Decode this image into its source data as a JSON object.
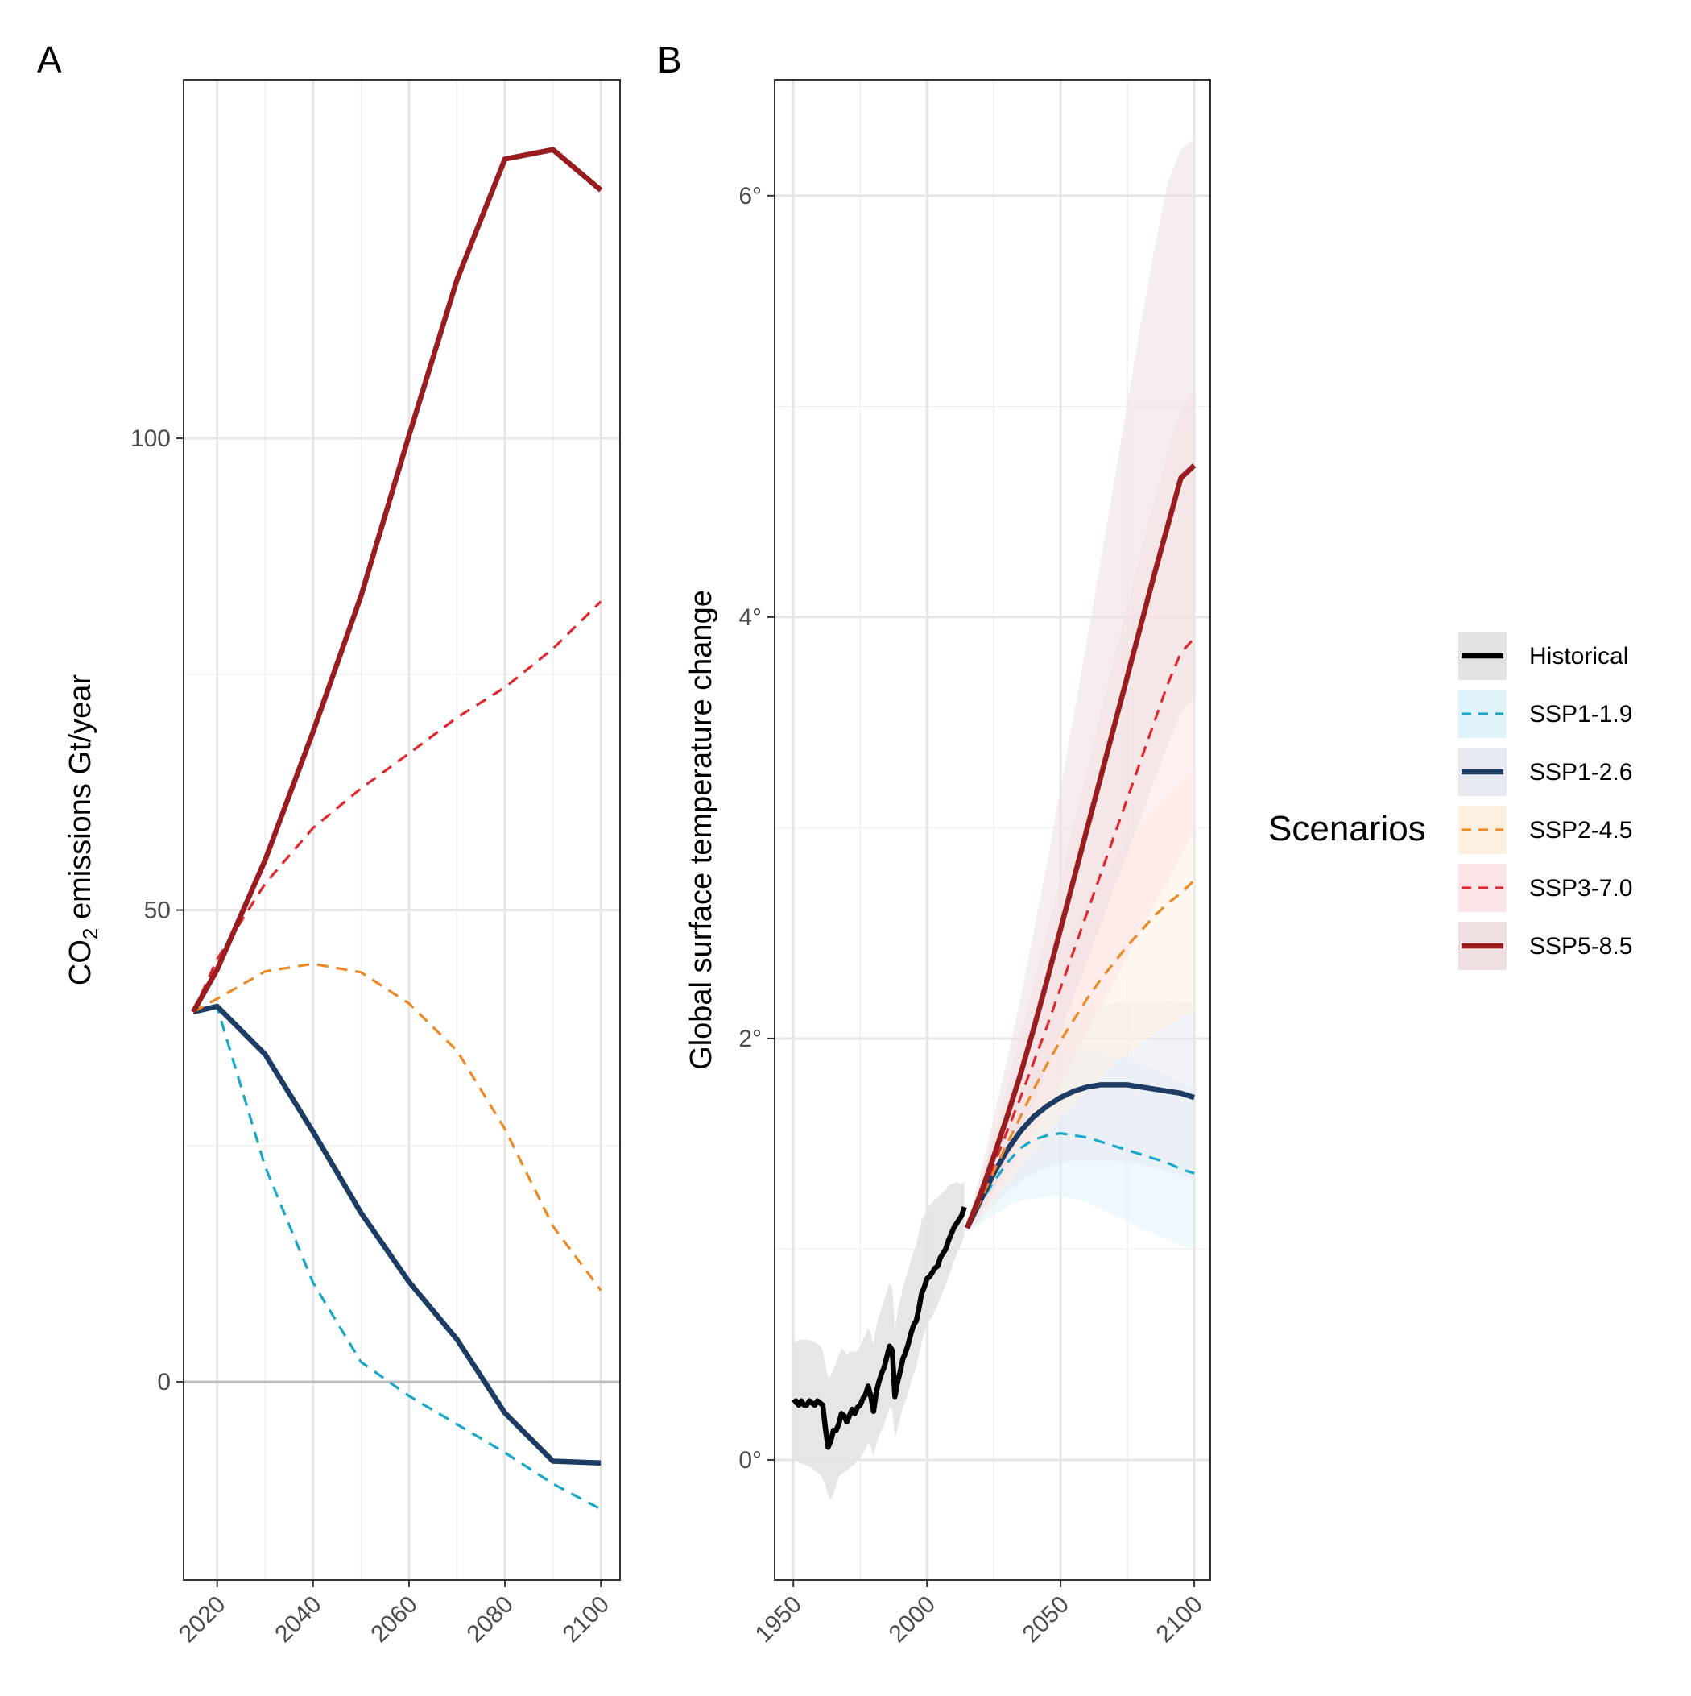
{
  "chart_data": [
    {
      "panel": "A",
      "type": "line",
      "xlabel": "",
      "ylabel_main": "CO",
      "ylabel_sub": "2",
      "ylabel_rest": " emissions Gt/year",
      "xlim": [
        2013,
        2104
      ],
      "ylim": [
        -21,
        138
      ],
      "xticks": [
        "2020",
        "2040",
        "2060",
        "2080",
        "2100"
      ],
      "yticks": [
        "0",
        "50",
        "100"
      ],
      "hline_zero": true,
      "grid": true,
      "series": [
        {
          "name": "SSP1-1.9",
          "color": "#1aa7c8",
          "dash": true,
          "x": [
            2015,
            2020,
            2030,
            2040,
            2050,
            2060,
            2070,
            2080,
            2090,
            2100
          ],
          "y": [
            39.2,
            39.7,
            22.8,
            10.5,
            2.1,
            -1.5,
            -4.5,
            -7.5,
            -10.8,
            -13.5
          ]
        },
        {
          "name": "SSP1-2.6",
          "color": "#1d3b63",
          "dash": false,
          "x": [
            2015,
            2020,
            2030,
            2040,
            2050,
            2060,
            2070,
            2080,
            2090,
            2100
          ],
          "y": [
            39.2,
            39.8,
            34.7,
            26.5,
            17.9,
            10.6,
            4.5,
            -3.3,
            -8.4,
            -8.6
          ]
        },
        {
          "name": "SSP2-4.5",
          "color": "#ee8a26",
          "dash": true,
          "x": [
            2015,
            2020,
            2030,
            2040,
            2050,
            2060,
            2070,
            2080,
            2090,
            2100
          ],
          "y": [
            39.2,
            40.6,
            43.5,
            44.3,
            43.4,
            40.1,
            35.1,
            26.8,
            16.5,
            9.7
          ]
        },
        {
          "name": "SSP3-7.0",
          "color": "#de2a2f",
          "dash": true,
          "x": [
            2015,
            2020,
            2030,
            2040,
            2050,
            2060,
            2070,
            2080,
            2090,
            2100
          ],
          "y": [
            39.2,
            44.8,
            52.8,
            58.7,
            62.9,
            66.6,
            70.4,
            73.6,
            77.7,
            82.7
          ]
        },
        {
          "name": "SSP5-8.5",
          "color": "#991c21",
          "dash": false,
          "x": [
            2015,
            2020,
            2030,
            2040,
            2050,
            2060,
            2070,
            2080,
            2090,
            2100
          ],
          "y": [
            39.2,
            43.7,
            55.3,
            68.9,
            83.3,
            100.3,
            116.8,
            129.6,
            130.6,
            126.3
          ]
        }
      ]
    },
    {
      "panel": "B",
      "type": "line",
      "xlabel": "",
      "ylabel": "Global surface temperature change",
      "xlim": [
        1943,
        2106
      ],
      "ylim": [
        -0.57,
        6.55
      ],
      "xticks": [
        "1950",
        "2000",
        "2050",
        "2100"
      ],
      "yticks": [
        "0°",
        "2°",
        "4°",
        "6°"
      ],
      "grid": true,
      "series": [
        {
          "name": "Historical",
          "color": "#000000",
          "dash": false,
          "x": [
            1950,
            1951,
            1952,
            1953,
            1954,
            1955,
            1956,
            1957,
            1958,
            1959,
            1960,
            1961,
            1962,
            1963,
            1964,
            1965,
            1966,
            1967,
            1968,
            1969,
            1970,
            1971,
            1972,
            1973,
            1974,
            1975,
            1976,
            1977,
            1978,
            1979,
            1980,
            1981,
            1982,
            1983,
            1984,
            1985,
            1986,
            1987,
            1988,
            1989,
            1990,
            1991,
            1992,
            1993,
            1994,
            1995,
            1996,
            1997,
            1998,
            1999,
            2000,
            2001,
            2002,
            2003,
            2004,
            2005,
            2006,
            2007,
            2008,
            2009,
            2010,
            2011,
            2012,
            2013,
            2014
          ],
          "y": [
            0.27,
            0.28,
            0.26,
            0.28,
            0.26,
            0.26,
            0.28,
            0.27,
            0.26,
            0.28,
            0.27,
            0.26,
            0.15,
            0.06,
            0.09,
            0.14,
            0.14,
            0.17,
            0.22,
            0.21,
            0.18,
            0.21,
            0.24,
            0.22,
            0.25,
            0.26,
            0.29,
            0.31,
            0.35,
            0.3,
            0.23,
            0.32,
            0.37,
            0.41,
            0.44,
            0.49,
            0.54,
            0.52,
            0.3,
            0.37,
            0.42,
            0.48,
            0.51,
            0.55,
            0.6,
            0.64,
            0.66,
            0.72,
            0.79,
            0.82,
            0.86,
            0.87,
            0.89,
            0.91,
            0.92,
            0.96,
            0.98,
            1.0,
            1.04,
            1.07,
            1.1,
            1.12,
            1.14,
            1.16,
            1.2
          ],
          "band_lo": [
            0.0,
            0.0,
            -0.01,
            -0.02,
            -0.02,
            -0.03,
            -0.03,
            -0.04,
            -0.05,
            -0.06,
            -0.07,
            -0.09,
            -0.12,
            -0.17,
            -0.19,
            -0.16,
            -0.12,
            -0.08,
            -0.07,
            -0.06,
            -0.05,
            -0.04,
            -0.03,
            -0.02,
            0.0,
            0.01,
            0.03,
            0.05,
            0.08,
            0.06,
            0.02,
            0.07,
            0.11,
            0.14,
            0.17,
            0.21,
            0.25,
            0.24,
            0.1,
            0.15,
            0.2,
            0.25,
            0.28,
            0.32,
            0.37,
            0.41,
            0.44,
            0.5,
            0.56,
            0.6,
            0.64,
            0.66,
            0.68,
            0.71,
            0.73,
            0.77,
            0.8,
            0.83,
            0.87,
            0.9,
            0.94,
            0.97,
            1.0,
            1.03,
            1.07
          ],
          "band_hi": [
            0.56,
            0.56,
            0.57,
            0.57,
            0.57,
            0.57,
            0.57,
            0.56,
            0.56,
            0.55,
            0.54,
            0.52,
            0.45,
            0.39,
            0.4,
            0.43,
            0.46,
            0.5,
            0.53,
            0.52,
            0.5,
            0.51,
            0.52,
            0.51,
            0.52,
            0.54,
            0.57,
            0.59,
            0.63,
            0.6,
            0.55,
            0.63,
            0.68,
            0.72,
            0.76,
            0.8,
            0.84,
            0.82,
            0.62,
            0.7,
            0.76,
            0.82,
            0.86,
            0.9,
            0.95,
            0.99,
            1.02,
            1.08,
            1.14,
            1.16,
            1.2,
            1.21,
            1.22,
            1.24,
            1.24,
            1.26,
            1.27,
            1.28,
            1.3,
            1.31,
            1.31,
            1.32,
            1.31,
            1.31,
            1.32
          ]
        },
        {
          "name": "SSP1-1.9",
          "color": "#1aa7c8",
          "dash": true,
          "x": [
            2015,
            2020,
            2025,
            2030,
            2035,
            2040,
            2045,
            2050,
            2055,
            2060,
            2065,
            2070,
            2075,
            2080,
            2085,
            2090,
            2095,
            2100
          ],
          "y": [
            1.1,
            1.22,
            1.32,
            1.41,
            1.48,
            1.52,
            1.54,
            1.55,
            1.54,
            1.53,
            1.51,
            1.49,
            1.47,
            1.45,
            1.43,
            1.41,
            1.38,
            1.36
          ],
          "band_lo": [
            1.08,
            1.12,
            1.16,
            1.2,
            1.23,
            1.24,
            1.25,
            1.25,
            1.24,
            1.22,
            1.19,
            1.16,
            1.13,
            1.1,
            1.07,
            1.05,
            1.02,
            1.0
          ],
          "band_hi": [
            1.12,
            1.32,
            1.5,
            1.66,
            1.79,
            1.87,
            1.92,
            1.95,
            1.96,
            1.96,
            1.95,
            1.93,
            1.91,
            1.88,
            1.85,
            1.82,
            1.79,
            1.76
          ]
        },
        {
          "name": "SSP1-2.6",
          "color": "#1d3b63",
          "dash": false,
          "x": [
            2015,
            2020,
            2025,
            2030,
            2035,
            2040,
            2045,
            2050,
            2055,
            2060,
            2065,
            2070,
            2075,
            2080,
            2085,
            2090,
            2095,
            2100
          ],
          "y": [
            1.1,
            1.23,
            1.36,
            1.47,
            1.56,
            1.63,
            1.68,
            1.72,
            1.75,
            1.77,
            1.78,
            1.78,
            1.78,
            1.77,
            1.76,
            1.75,
            1.74,
            1.72
          ],
          "band_lo": [
            1.08,
            1.14,
            1.21,
            1.27,
            1.32,
            1.36,
            1.39,
            1.41,
            1.42,
            1.42,
            1.42,
            1.42,
            1.41,
            1.4,
            1.39,
            1.37,
            1.35,
            1.33
          ],
          "band_hi": [
            1.12,
            1.33,
            1.52,
            1.68,
            1.81,
            1.92,
            2.0,
            2.07,
            2.11,
            2.14,
            2.16,
            2.17,
            2.18,
            2.18,
            2.18,
            2.18,
            2.17,
            2.17
          ]
        },
        {
          "name": "SSP2-4.5",
          "color": "#ee8a26",
          "dash": true,
          "x": [
            2015,
            2020,
            2025,
            2030,
            2035,
            2040,
            2045,
            2050,
            2055,
            2060,
            2065,
            2070,
            2075,
            2080,
            2085,
            2090,
            2095,
            2100
          ],
          "y": [
            1.1,
            1.23,
            1.37,
            1.5,
            1.63,
            1.76,
            1.88,
            1.99,
            2.09,
            2.19,
            2.28,
            2.36,
            2.44,
            2.51,
            2.58,
            2.64,
            2.69,
            2.75
          ],
          "band_lo": [
            1.08,
            1.15,
            1.23,
            1.31,
            1.39,
            1.47,
            1.55,
            1.62,
            1.69,
            1.76,
            1.82,
            1.88,
            1.93,
            1.98,
            2.02,
            2.06,
            2.1,
            2.13
          ],
          "band_hi": [
            1.12,
            1.31,
            1.5,
            1.7,
            1.89,
            2.07,
            2.23,
            2.38,
            2.51,
            2.63,
            2.74,
            2.84,
            2.93,
            3.01,
            3.09,
            3.16,
            3.22,
            3.28
          ]
        },
        {
          "name": "SSP3-7.0",
          "color": "#de2a2f",
          "dash": true,
          "x": [
            2015,
            2020,
            2025,
            2030,
            2035,
            2040,
            2045,
            2050,
            2055,
            2060,
            2065,
            2070,
            2075,
            2080,
            2085,
            2090,
            2095,
            2100
          ],
          "y": [
            1.1,
            1.24,
            1.4,
            1.56,
            1.72,
            1.89,
            2.06,
            2.24,
            2.42,
            2.6,
            2.78,
            2.96,
            3.14,
            3.32,
            3.5,
            3.68,
            3.83,
            3.9
          ],
          "band_lo": [
            1.08,
            1.16,
            1.25,
            1.35,
            1.45,
            1.56,
            1.67,
            1.79,
            1.91,
            2.03,
            2.15,
            2.27,
            2.39,
            2.51,
            2.63,
            2.75,
            2.87,
            2.98
          ],
          "band_hi": [
            1.12,
            1.32,
            1.54,
            1.77,
            2.01,
            2.26,
            2.51,
            2.76,
            3.02,
            3.28,
            3.54,
            3.8,
            4.06,
            4.31,
            4.55,
            4.78,
            4.98,
            5.08
          ]
        },
        {
          "name": "SSP5-8.5",
          "color": "#991c21",
          "dash": false,
          "x": [
            2015,
            2020,
            2025,
            2030,
            2035,
            2040,
            2045,
            2050,
            2055,
            2060,
            2065,
            2070,
            2075,
            2080,
            2085,
            2090,
            2095,
            2100
          ],
          "y": [
            1.1,
            1.26,
            1.44,
            1.63,
            1.83,
            2.05,
            2.28,
            2.52,
            2.76,
            3.0,
            3.24,
            3.48,
            3.72,
            3.96,
            4.2,
            4.43,
            4.66,
            4.72
          ],
          "band_lo": [
            1.08,
            1.17,
            1.28,
            1.41,
            1.55,
            1.7,
            1.86,
            2.03,
            2.2,
            2.37,
            2.54,
            2.71,
            2.88,
            3.05,
            3.22,
            3.39,
            3.55,
            3.62
          ],
          "band_hi": [
            1.12,
            1.36,
            1.63,
            1.9,
            2.19,
            2.51,
            2.84,
            3.19,
            3.54,
            3.9,
            4.27,
            4.64,
            5.02,
            5.39,
            5.74,
            6.06,
            6.22,
            6.27
          ]
        }
      ]
    }
  ],
  "legend": {
    "title": "Scenarios",
    "placement": "right",
    "entries": [
      {
        "label": "Historical",
        "color": "#000000",
        "dash": false,
        "fill": "#e3e3e3"
      },
      {
        "label": "SSP1-1.9",
        "color": "#1aa7c8",
        "dash": true,
        "fill": "#e1f3fa"
      },
      {
        "label": "SSP1-2.6",
        "color": "#1d3b63",
        "dash": false,
        "fill": "#e6e9ef"
      },
      {
        "label": "SSP2-4.5",
        "color": "#ee8a26",
        "dash": true,
        "fill": "#fdf0e1"
      },
      {
        "label": "SSP3-7.0",
        "color": "#de2a2f",
        "dash": true,
        "fill": "#fbe4e5"
      },
      {
        "label": "SSP5-8.5",
        "color": "#991c21",
        "dash": false,
        "fill": "#efdfe0"
      }
    ]
  }
}
